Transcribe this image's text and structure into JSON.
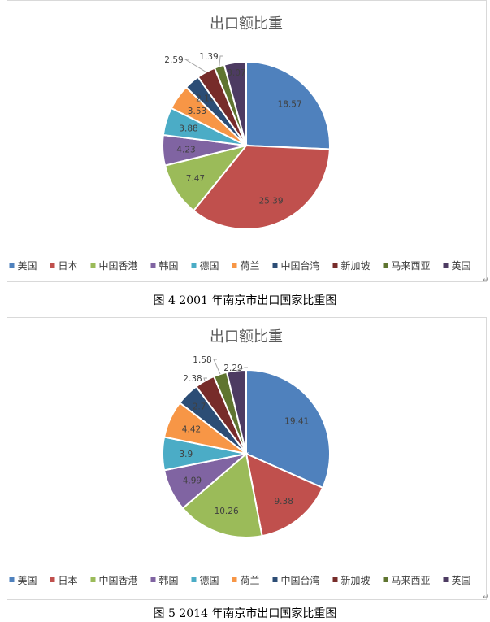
{
  "colors": [
    "#4f81bd",
    "#c0504d",
    "#9bbb59",
    "#8064a2",
    "#4bacc6",
    "#f79646",
    "#2c4d75",
    "#772c2a",
    "#5f7530",
    "#4d3b62"
  ],
  "chart_data": [
    {
      "type": "pie",
      "title": "出口额比重",
      "categories": [
        "美国",
        "日本",
        "中国香港",
        "韩国",
        "德国",
        "荷兰",
        "中国台湾",
        "新加坡",
        "马来西亚",
        "英国"
      ],
      "values": [
        18.57,
        25.39,
        7.47,
        4.23,
        3.88,
        3.53,
        2.16,
        2.59,
        1.39,
        3.07
      ],
      "labels": [
        "18.57",
        "25.39",
        "7.47",
        "4.23",
        "3.88",
        "3.53",
        "2.16",
        "2.59",
        "1.39",
        "3.07"
      ],
      "legend": "bottom"
    },
    {
      "type": "pie",
      "title": "出口额比重",
      "categories": [
        "美国",
        "日本",
        "中国香港",
        "韩国",
        "德国",
        "荷兰",
        "中国台湾",
        "新加坡",
        "马来西亚",
        "英国"
      ],
      "values": [
        19.41,
        9.38,
        10.26,
        4.99,
        3.9,
        4.42,
        2.7,
        2.38,
        1.58,
        2.29
      ],
      "labels": [
        "19.41",
        "9.38",
        "10.26",
        "4.99",
        "3.9",
        "4.42",
        "2.7",
        "2.38",
        "1.58",
        "2.29"
      ],
      "legend": "bottom"
    }
  ],
  "captions": [
    "图 4 2001 年南京市出口国家比重图",
    "图 5 2014 年南京市出口国家比重图"
  ],
  "return_mark": "↵"
}
